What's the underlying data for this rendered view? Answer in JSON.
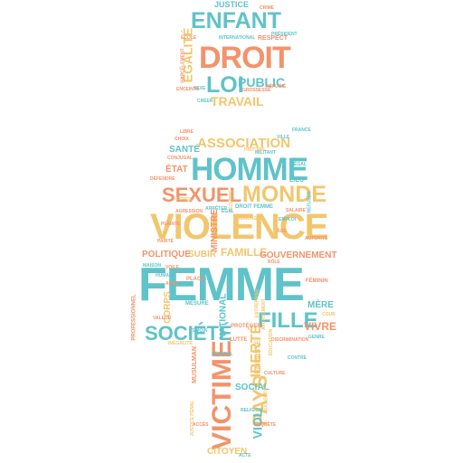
{
  "colors": {
    "teal": "#5fc3c9",
    "yellow": "#f2c66d",
    "orange": "#f3936b",
    "background": "#ffffff"
  },
  "words": [
    {
      "text": "JUSTICE",
      "color": "teal"
    },
    {
      "text": "ENFANT",
      "color": "teal"
    },
    {
      "text": "RESPECT",
      "color": "orange"
    },
    {
      "text": "DROIT",
      "color": "orange"
    },
    {
      "text": "ÉGALITÉ",
      "color": "yellow"
    },
    {
      "text": "INTERNATIONAL",
      "color": "teal"
    },
    {
      "text": "HARCÈLEMENT",
      "color": "orange"
    },
    {
      "text": "LOI",
      "color": "teal"
    },
    {
      "text": "PUBLIC",
      "color": "teal"
    },
    {
      "text": "TRAVAIL",
      "color": "yellow"
    },
    {
      "text": "GROSSESSE",
      "color": "orange"
    },
    {
      "text": "ASSOCIATION",
      "color": "yellow"
    },
    {
      "text": "HOMME",
      "color": "teal"
    },
    {
      "text": "SANTÉ",
      "color": "teal"
    },
    {
      "text": "ÉTAT",
      "color": "orange"
    },
    {
      "text": "SEXUEL",
      "color": "orange"
    },
    {
      "text": "MONDE",
      "color": "yellow"
    },
    {
      "text": "VIOLENCE",
      "color": "yellow"
    },
    {
      "text": "MINISTRE",
      "color": "orange"
    },
    {
      "text": "FAMILLE",
      "color": "yellow"
    },
    {
      "text": "POLITIQUE",
      "color": "orange"
    },
    {
      "text": "SUBIR",
      "color": "yellow"
    },
    {
      "text": "GOUVERNEMENT",
      "color": "orange"
    },
    {
      "text": "FEMME",
      "color": "teal"
    },
    {
      "text": "FILLE",
      "color": "teal"
    },
    {
      "text": "SOCIÉTÉ",
      "color": "teal"
    },
    {
      "text": "VIVRE",
      "color": "orange"
    },
    {
      "text": "MÈRE",
      "color": "teal"
    },
    {
      "text": "CORPS",
      "color": "yellow"
    },
    {
      "text": "NATIONAL",
      "color": "teal"
    },
    {
      "text": "LIBERTÉ",
      "color": "yellow"
    },
    {
      "text": "PAYS",
      "color": "yellow"
    },
    {
      "text": "FÉMINISTE",
      "color": "yellow"
    },
    {
      "text": "VICTIME",
      "color": "orange"
    },
    {
      "text": "VIOL",
      "color": "teal"
    },
    {
      "text": "SOCIAL",
      "color": "teal"
    },
    {
      "text": "MUSULMAN",
      "color": "orange"
    },
    {
      "text": "CITOYEN",
      "color": "yellow"
    },
    {
      "text": "PROFESSIONNEL",
      "color": "orange"
    },
    {
      "text": "LUTTE",
      "color": "orange"
    },
    {
      "text": "PROTÉGER",
      "color": "orange"
    },
    {
      "text": "MESURE",
      "color": "teal"
    },
    {
      "text": "PLACE",
      "color": "orange"
    },
    {
      "text": "HUMAIN",
      "color": "teal"
    },
    {
      "text": "FÉMININ",
      "color": "orange"
    },
    {
      "text": "LIEU",
      "color": "teal"
    },
    {
      "text": "DROIT FEMME",
      "color": "teal"
    },
    {
      "text": "SÉCURITÉ",
      "color": "yellow"
    },
    {
      "text": "DÉFENDRE",
      "color": "orange"
    },
    {
      "text": "CHOIX",
      "color": "orange"
    },
    {
      "text": "LIBRE",
      "color": "orange"
    },
    {
      "text": "VALEUR",
      "color": "orange"
    },
    {
      "text": "COLLECTIF",
      "color": "yellow"
    },
    {
      "text": "ACTE",
      "color": "teal"
    },
    {
      "text": "DISCRIMINATION",
      "color": "orange"
    },
    {
      "text": "GENRE",
      "color": "teal"
    },
    {
      "text": "ENTREPRISE",
      "color": "yellow"
    },
    {
      "text": "CRÉER",
      "color": "teal"
    },
    {
      "text": "AUTORITÉ",
      "color": "orange"
    },
    {
      "text": "FÉDÉRAL",
      "color": "teal"
    },
    {
      "text": "CRIME",
      "color": "orange"
    },
    {
      "text": "MILITANT",
      "color": "teal"
    },
    {
      "text": "HISTOIRE",
      "color": "yellow"
    },
    {
      "text": "VILLE",
      "color": "teal"
    },
    {
      "text": "CONJUGAL",
      "color": "orange"
    },
    {
      "text": "ÂGE",
      "color": "orange"
    },
    {
      "text": "COUR",
      "color": "yellow"
    },
    {
      "text": "PARITÉ",
      "color": "orange"
    },
    {
      "text": "MAISON",
      "color": "teal"
    },
    {
      "text": "AGRESSION",
      "color": "orange"
    },
    {
      "text": "ÉGAL",
      "color": "teal"
    },
    {
      "text": "MARIAGE",
      "color": "yellow"
    },
    {
      "text": "EMPLOI",
      "color": "teal"
    },
    {
      "text": "SALAIRE",
      "color": "orange"
    },
    {
      "text": "REFUSER",
      "color": "teal"
    },
    {
      "text": "PLAINTE",
      "color": "orange"
    },
    {
      "text": "ARRÊTER",
      "color": "teal"
    },
    {
      "text": "FORCE",
      "color": "yellow"
    },
    {
      "text": "VOILE",
      "color": "orange"
    },
    {
      "text": "TÉMOIN",
      "color": "teal"
    },
    {
      "text": "ÉDUCATION",
      "color": "yellow"
    },
    {
      "text": "CULTURE",
      "color": "orange"
    },
    {
      "text": "RELIGION",
      "color": "teal"
    },
    {
      "text": "ENQUÊTE",
      "color": "orange"
    },
    {
      "text": "PRÉSIDENT",
      "color": "teal"
    },
    {
      "text": "JUSTICE PÉNAL",
      "color": "yellow"
    },
    {
      "text": "ÉCOLE",
      "color": "orange"
    },
    {
      "text": "SEXE",
      "color": "teal"
    },
    {
      "text": "ENCEINTE",
      "color": "orange"
    },
    {
      "text": "AVORTEMENT",
      "color": "yellow"
    },
    {
      "text": "FRANCE",
      "color": "teal"
    },
    {
      "text": "RÔLE",
      "color": "orange"
    },
    {
      "text": "LÉGAL",
      "color": "teal"
    },
    {
      "text": "RÉFUGIÉ",
      "color": "orange"
    },
    {
      "text": "ABUS",
      "color": "orange"
    },
    {
      "text": "CONTRE",
      "color": "teal"
    },
    {
      "text": "INÉGALITÉ",
      "color": "yellow"
    },
    {
      "text": "ACCÈS",
      "color": "orange"
    }
  ]
}
